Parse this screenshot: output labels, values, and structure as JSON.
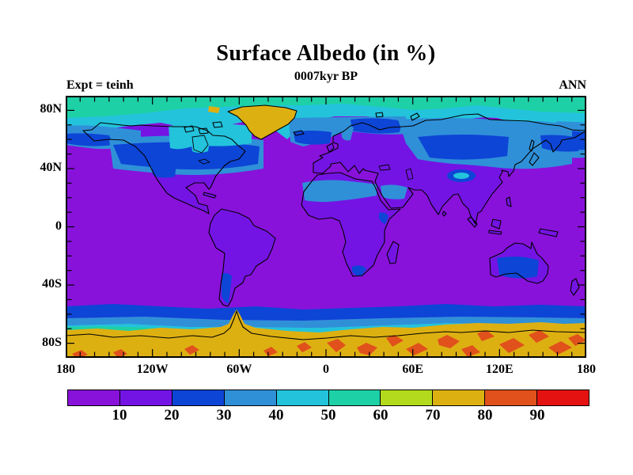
{
  "header": {
    "title": "Surface Albedo (in %)",
    "subtitle": "0007kyr BP",
    "experiment": "Expt = teinh",
    "season": "ANN"
  },
  "chart_data": {
    "type": "heatmap",
    "title": "Surface Albedo (in %)",
    "subtitle": "0007kyr BP",
    "experiment": "Expt = teinh",
    "season": "ANN",
    "projection": "global cylindrical latitude-longitude map with coastlines",
    "x_axis": {
      "range_deg": [
        -180,
        180
      ],
      "major_tick_labels": [
        "180",
        "120W",
        "60W",
        "0",
        "60E",
        "120E",
        "180"
      ],
      "major_tick_lons": [
        -180,
        -120,
        -60,
        0,
        60,
        120,
        180
      ],
      "minor_tick_interval_deg": 10
    },
    "y_axis": {
      "range_deg": [
        -90,
        90
      ],
      "major_tick_labels": [
        "80N",
        "40N",
        "0",
        "40S",
        "80S"
      ],
      "major_tick_lats": [
        80,
        40,
        0,
        -40,
        -80
      ],
      "minor_tick_interval_deg": 10
    },
    "colorbar": {
      "units": "%",
      "boundary_labels": [
        "10",
        "20",
        "30",
        "40",
        "50",
        "60",
        "70",
        "80",
        "90"
      ],
      "colors": [
        "#8812da",
        "#7414e4",
        "#0d45d6",
        "#2f90d8",
        "#23c3dc",
        "#1ed0a6",
        "#b4da1e",
        "#ddb012",
        "#e0511b",
        "#e51212"
      ],
      "bin_ranges": [
        "<10",
        "10-20",
        "20-30",
        "30-40",
        "40-50",
        "50-60",
        "60-70",
        "70-80",
        "80-90",
        ">90"
      ]
    },
    "regions_summary": [
      {
        "region": "Tropical and mid-latitude oceans",
        "albedo_pct": "<10"
      },
      {
        "region": "Tropical land (South America, central/southern Africa, India, SE Asia, Europe)",
        "albedo_pct": "10-20"
      },
      {
        "region": "Boreal North America, Siberia, Patagonia, Tibet fringe",
        "albedo_pct": "20-40"
      },
      {
        "region": "Sahara and Arabian deserts",
        "albedo_pct": "30-40"
      },
      {
        "region": "Australian interior",
        "albedo_pct": "20-30"
      },
      {
        "region": "Arctic Ocean and ice-edge seas",
        "albedo_pct": "40-60"
      },
      {
        "region": "Greenland ice sheet and Ellesmere patch",
        "albedo_pct": "70-80"
      },
      {
        "region": "Southern Ocean sea-ice bands (55S-70S)",
        "albedo_pct": "20-60"
      },
      {
        "region": "Antarctic ice sheet",
        "albedo_pct": "70-80 with 80-90 patches"
      }
    ]
  }
}
